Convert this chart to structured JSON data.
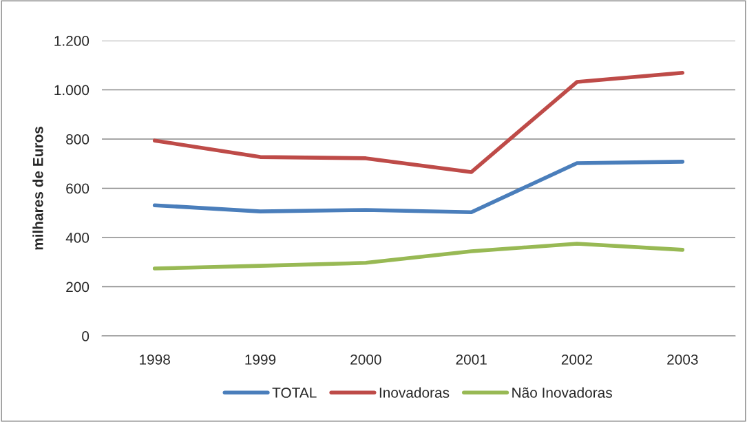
{
  "chart_data": {
    "type": "line",
    "ylabel": "milhares de Euros",
    "categories": [
      "1998",
      "1999",
      "2000",
      "2001",
      "2002",
      "2003"
    ],
    "series": [
      {
        "name": "TOTAL",
        "color": "#4a7ebb",
        "values": [
          531,
          506,
          512,
          503,
          702,
          708
        ]
      },
      {
        "name": "Inovadoras",
        "color": "#be4b48",
        "values": [
          794,
          727,
          722,
          666,
          1032,
          1069
        ]
      },
      {
        "name": "Não Inovadoras",
        "color": "#98b954",
        "values": [
          274,
          285,
          297,
          344,
          375,
          350
        ]
      }
    ],
    "ylim": [
      0,
      1200
    ],
    "yticks": [
      0,
      200,
      400,
      600,
      800,
      {
        "value": 1000,
        "label": "1.000"
      },
      {
        "value": 1200,
        "label": "1.200"
      }
    ],
    "grid": "y",
    "legend": "bottom",
    "marker": "none",
    "line_style": "solid"
  }
}
